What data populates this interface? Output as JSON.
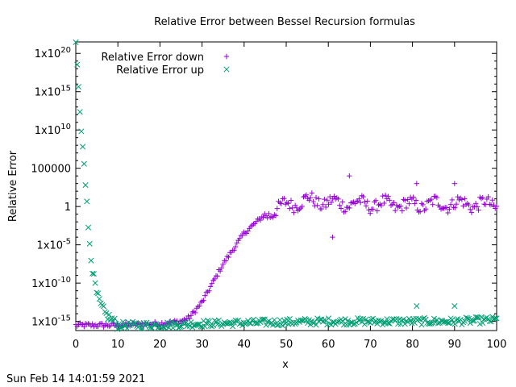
{
  "chart_data": {
    "type": "scatter",
    "title": "Relative Error between Bessel Recursion formulas",
    "xlabel": "x",
    "ylabel": "Relative Error",
    "xlim": [
      0,
      100
    ],
    "ylim_log10": [
      -16.2,
      21.5
    ],
    "y_scale": "log",
    "grid": false,
    "legend_position": "top-left",
    "x_ticks": [
      {
        "value": 0,
        "label": "0"
      },
      {
        "value": 10,
        "label": "10"
      },
      {
        "value": 20,
        "label": "20"
      },
      {
        "value": 30,
        "label": "30"
      },
      {
        "value": 40,
        "label": "40"
      },
      {
        "value": 50,
        "label": "50"
      },
      {
        "value": 60,
        "label": "60"
      },
      {
        "value": 70,
        "label": "70"
      },
      {
        "value": 80,
        "label": "80"
      },
      {
        "value": 90,
        "label": "90"
      },
      {
        "value": 100,
        "label": "100"
      }
    ],
    "y_ticks": [
      {
        "log10": -15,
        "base": "1x10",
        "exp": "-15"
      },
      {
        "log10": -10,
        "base": "1x10",
        "exp": "-10"
      },
      {
        "log10": -5,
        "base": "1x10",
        "exp": "-5"
      },
      {
        "log10": 0,
        "base": "1",
        "exp": ""
      },
      {
        "log10": 5,
        "base": "100000",
        "exp": ""
      },
      {
        "log10": 10,
        "base": "1x10",
        "exp": "10"
      },
      {
        "log10": 15,
        "base": "1x10",
        "exp": "15"
      },
      {
        "log10": 20,
        "base": "1x10",
        "exp": "20"
      }
    ],
    "series": [
      {
        "name": "Relative Error down",
        "marker": "plus",
        "color": "#9400d3",
        "trend_log10": [
          [
            0,
            -15.5
          ],
          [
            10,
            -15.5
          ],
          [
            20,
            -15.3
          ],
          [
            25,
            -15.0
          ],
          [
            27,
            -14.5
          ],
          [
            30,
            -12.5
          ],
          [
            35,
            -7.5
          ],
          [
            40,
            -3.5
          ],
          [
            45,
            -1.0
          ],
          [
            50,
            0.2
          ],
          [
            55,
            0.8
          ],
          [
            60,
            0.5
          ],
          [
            70,
            0.3
          ],
          [
            80,
            0.2
          ],
          [
            90,
            0.4
          ],
          [
            100,
            0.2
          ]
        ],
        "outliers": [
          {
            "x": 61,
            "y": 0.0001
          },
          {
            "x": 65,
            "y": 10000.0
          },
          {
            "x": 81,
            "y": 1000.0
          },
          {
            "x": 90,
            "y": 1000.0
          }
        ]
      },
      {
        "name": "Relative Error up",
        "marker": "cross",
        "color": "#009e73",
        "trend_log10": [
          [
            0,
            21.5
          ],
          [
            0.5,
            17
          ],
          [
            1,
            12
          ],
          [
            2,
            6
          ],
          [
            3,
            -3
          ],
          [
            4,
            -8.5
          ],
          [
            5,
            -11.5
          ],
          [
            6,
            -13
          ],
          [
            7,
            -14
          ],
          [
            8,
            -14.5
          ],
          [
            9,
            -15
          ],
          [
            10,
            -15.5
          ],
          [
            20,
            -15.5
          ],
          [
            30,
            -15.3
          ],
          [
            40,
            -15.2
          ],
          [
            50,
            -15.1
          ],
          [
            60,
            -15.0
          ],
          [
            70,
            -15.0
          ],
          [
            80,
            -15.0
          ],
          [
            90,
            -15.0
          ],
          [
            100,
            -14.8
          ]
        ],
        "outliers": [
          {
            "x": 81,
            "y": 1e-13
          },
          {
            "x": 90,
            "y": 1e-13
          }
        ]
      }
    ]
  },
  "footer": {
    "timestamp": "Sun Feb 14 14:01:59 2021"
  }
}
